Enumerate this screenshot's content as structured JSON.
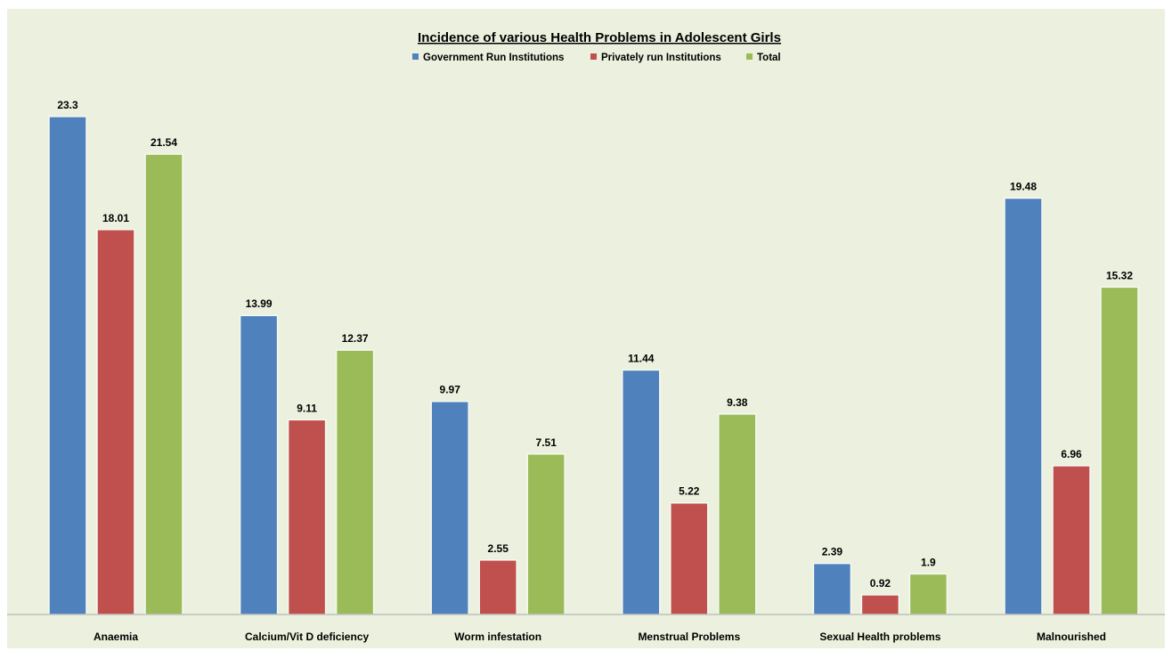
{
  "chart_data": {
    "type": "bar",
    "title": "Incidence of various Health Problems in Adolescent Girls",
    "categories": [
      "Anaemia",
      "Calcium/Vit D deficiency",
      "Worm infestation",
      "Menstrual Problems",
      "Sexual Health problems",
      "Malnourished"
    ],
    "series": [
      {
        "name": "Government Run Institutions",
        "color": "#4f81bd",
        "values": [
          23.3,
          13.99,
          9.97,
          11.44,
          2.39,
          19.48
        ]
      },
      {
        "name": "Privately run Institutions",
        "color": "#c0504d",
        "values": [
          18.01,
          9.11,
          2.55,
          5.22,
          0.92,
          6.96
        ]
      },
      {
        "name": "Total",
        "color": "#9bbb59",
        "values": [
          21.54,
          12.37,
          7.51,
          9.38,
          1.9,
          15.32
        ]
      }
    ],
    "ylim": [
      0,
      23.3
    ],
    "legend_position": "top",
    "grid": false,
    "data_labels": true,
    "background": "#ebf1de"
  }
}
